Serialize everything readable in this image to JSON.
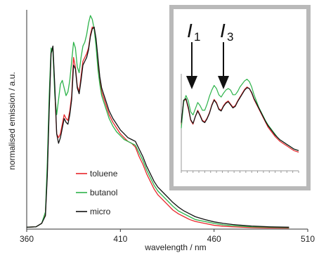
{
  "chart_data": [
    {
      "type": "line",
      "title": "",
      "xlabel": "wavelength / nm",
      "ylabel": "normalised emission / a.u.",
      "xlim": [
        360,
        510
      ],
      "ylim": [
        0,
        1.15
      ],
      "xticks": [
        360,
        410,
        460,
        510
      ],
      "y_tick_labels": "none",
      "legend_position": "bottom-left",
      "series": [
        {
          "name": "toluene",
          "color": "#e8262b",
          "x": [
            360,
            365,
            368,
            370,
            371,
            372,
            373,
            374,
            375,
            376,
            377,
            378,
            379,
            380,
            381,
            382,
            383,
            384,
            385,
            386,
            387,
            388,
            389,
            390,
            391,
            392,
            393,
            394,
            395,
            396,
            397,
            398,
            399,
            400,
            402,
            404,
            406,
            408,
            410,
            412,
            414,
            416,
            418,
            420,
            422,
            424,
            426,
            428,
            430,
            432,
            435,
            438,
            441,
            444,
            447,
            450,
            455,
            460,
            465,
            470,
            480,
            490,
            500
          ],
          "y": [
            0.01,
            0.012,
            0.03,
            0.08,
            0.3,
            0.65,
            0.93,
            0.95,
            0.72,
            0.5,
            0.48,
            0.5,
            0.55,
            0.6,
            0.58,
            0.57,
            0.62,
            0.7,
            0.9,
            0.85,
            0.75,
            0.72,
            0.8,
            0.88,
            0.9,
            0.92,
            0.95,
            1.02,
            1.06,
            1.05,
            0.98,
            0.86,
            0.78,
            0.72,
            0.66,
            0.6,
            0.56,
            0.53,
            0.5,
            0.48,
            0.46,
            0.45,
            0.43,
            0.38,
            0.34,
            0.29,
            0.25,
            0.21,
            0.18,
            0.16,
            0.13,
            0.1,
            0.08,
            0.065,
            0.05,
            0.04,
            0.03,
            0.02,
            0.015,
            0.012,
            0.008,
            0.006,
            0.005
          ]
        },
        {
          "name": "butanol",
          "color": "#2db34a",
          "x": [
            360,
            365,
            368,
            370,
            371,
            372,
            373,
            374,
            375,
            376,
            377,
            378,
            379,
            380,
            381,
            382,
            383,
            384,
            385,
            386,
            387,
            388,
            389,
            390,
            391,
            392,
            393,
            394,
            395,
            396,
            397,
            398,
            399,
            400,
            402,
            404,
            406,
            408,
            410,
            412,
            414,
            416,
            418,
            420,
            422,
            424,
            426,
            428,
            430,
            432,
            435,
            438,
            441,
            444,
            447,
            450,
            455,
            460,
            465,
            470,
            480,
            490,
            500
          ],
          "y": [
            0.01,
            0.012,
            0.03,
            0.09,
            0.35,
            0.7,
            0.95,
            0.93,
            0.7,
            0.6,
            0.68,
            0.76,
            0.78,
            0.74,
            0.7,
            0.72,
            0.78,
            0.88,
            0.98,
            0.95,
            0.85,
            0.82,
            0.9,
            0.96,
            0.98,
            1.02,
            1.08,
            1.12,
            1.1,
            1.05,
            0.96,
            0.84,
            0.76,
            0.7,
            0.64,
            0.58,
            0.54,
            0.51,
            0.49,
            0.47,
            0.46,
            0.45,
            0.44,
            0.4,
            0.36,
            0.31,
            0.27,
            0.23,
            0.2,
            0.18,
            0.15,
            0.12,
            0.095,
            0.08,
            0.065,
            0.05,
            0.04,
            0.03,
            0.022,
            0.018,
            0.012,
            0.01,
            0.008
          ]
        },
        {
          "name": "micro",
          "color": "#111111",
          "x": [
            360,
            365,
            368,
            370,
            371,
            372,
            373,
            374,
            375,
            376,
            377,
            378,
            379,
            380,
            381,
            382,
            383,
            384,
            385,
            386,
            387,
            388,
            389,
            390,
            391,
            392,
            393,
            394,
            395,
            396,
            397,
            398,
            399,
            400,
            402,
            404,
            406,
            408,
            410,
            412,
            414,
            416,
            418,
            420,
            422,
            424,
            426,
            428,
            430,
            432,
            435,
            438,
            441,
            444,
            447,
            450,
            455,
            460,
            465,
            470,
            480,
            490,
            500
          ],
          "y": [
            0.01,
            0.012,
            0.03,
            0.07,
            0.28,
            0.62,
            0.92,
            0.96,
            0.75,
            0.5,
            0.45,
            0.48,
            0.53,
            0.58,
            0.56,
            0.55,
            0.6,
            0.68,
            0.86,
            0.84,
            0.74,
            0.71,
            0.78,
            0.86,
            0.88,
            0.9,
            0.94,
            1.01,
            1.05,
            1.06,
            1.0,
            0.9,
            0.8,
            0.74,
            0.68,
            0.62,
            0.58,
            0.55,
            0.52,
            0.5,
            0.48,
            0.47,
            0.46,
            0.42,
            0.38,
            0.33,
            0.29,
            0.25,
            0.22,
            0.2,
            0.17,
            0.14,
            0.115,
            0.095,
            0.08,
            0.065,
            0.05,
            0.038,
            0.03,
            0.024,
            0.016,
            0.012,
            0.01
          ]
        }
      ]
    },
    {
      "type": "line",
      "title": "",
      "annotations": [
        {
          "label": "I",
          "sub": "1"
        },
        {
          "label": "I",
          "sub": "3"
        }
      ],
      "series": [
        {
          "name": "toluene-inset",
          "color": "#e8262b",
          "x": [
            0,
            2,
            4,
            6,
            8,
            10,
            12,
            14,
            16,
            18,
            20,
            22,
            24,
            26,
            28,
            30,
            32,
            34,
            36,
            38,
            40,
            42,
            44,
            46,
            48,
            50,
            52,
            54,
            56,
            58,
            60,
            62,
            64,
            66,
            68,
            70,
            72,
            74,
            76,
            78,
            80,
            82,
            84,
            86,
            88,
            90,
            92,
            94,
            96,
            98,
            100
          ],
          "y": [
            0.6,
            0.9,
            0.92,
            0.8,
            0.65,
            0.6,
            0.7,
            0.78,
            0.72,
            0.65,
            0.63,
            0.68,
            0.75,
            0.85,
            0.92,
            0.88,
            0.8,
            0.78,
            0.84,
            0.88,
            0.9,
            0.86,
            0.82,
            0.84,
            0.9,
            0.95,
            1.0,
            1.05,
            1.08,
            1.06,
            1.0,
            0.92,
            0.86,
            0.8,
            0.74,
            0.68,
            0.62,
            0.56,
            0.52,
            0.48,
            0.44,
            0.41,
            0.38,
            0.36,
            0.34,
            0.32,
            0.3,
            0.28,
            0.26,
            0.25,
            0.24
          ]
        },
        {
          "name": "butanol-inset",
          "color": "#2db34a",
          "x": [
            0,
            2,
            4,
            6,
            8,
            10,
            12,
            14,
            16,
            18,
            20,
            22,
            24,
            26,
            28,
            30,
            32,
            34,
            36,
            38,
            40,
            42,
            44,
            46,
            48,
            50,
            52,
            54,
            56,
            58,
            60,
            62,
            64,
            66,
            68,
            70,
            72,
            74,
            76,
            78,
            80,
            82,
            84,
            86,
            88,
            90,
            92,
            94,
            96,
            98,
            100
          ],
          "y": [
            0.55,
            0.88,
            0.97,
            0.9,
            0.76,
            0.72,
            0.8,
            0.88,
            0.84,
            0.78,
            0.78,
            0.86,
            0.96,
            1.04,
            1.1,
            1.06,
            0.98,
            0.95,
            1.0,
            1.04,
            1.06,
            1.04,
            0.98,
            0.98,
            1.02,
            1.08,
            1.12,
            1.16,
            1.18,
            1.15,
            1.08,
            0.98,
            0.9,
            0.82,
            0.76,
            0.7,
            0.64,
            0.59,
            0.55,
            0.51,
            0.47,
            0.43,
            0.4,
            0.38,
            0.36,
            0.34,
            0.32,
            0.3,
            0.28,
            0.27,
            0.26
          ]
        },
        {
          "name": "micro-inset",
          "color": "#111111",
          "x": [
            0,
            2,
            4,
            6,
            8,
            10,
            12,
            14,
            16,
            18,
            20,
            22,
            24,
            26,
            28,
            30,
            32,
            34,
            36,
            38,
            40,
            42,
            44,
            46,
            48,
            50,
            52,
            54,
            56,
            58,
            60,
            62,
            64,
            66,
            68,
            70,
            72,
            74,
            76,
            78,
            80,
            82,
            84,
            86,
            88,
            90,
            92,
            94,
            96,
            98,
            100
          ],
          "y": [
            0.62,
            0.91,
            0.93,
            0.82,
            0.66,
            0.61,
            0.7,
            0.77,
            0.71,
            0.64,
            0.62,
            0.67,
            0.74,
            0.84,
            0.91,
            0.87,
            0.79,
            0.77,
            0.83,
            0.87,
            0.89,
            0.85,
            0.81,
            0.83,
            0.89,
            0.94,
            0.99,
            1.04,
            1.07,
            1.06,
            1.01,
            0.93,
            0.87,
            0.81,
            0.75,
            0.69,
            0.63,
            0.58,
            0.54,
            0.5,
            0.46,
            0.43,
            0.4,
            0.38,
            0.36,
            0.34,
            0.32,
            0.3,
            0.28,
            0.27,
            0.26
          ]
        }
      ]
    }
  ]
}
